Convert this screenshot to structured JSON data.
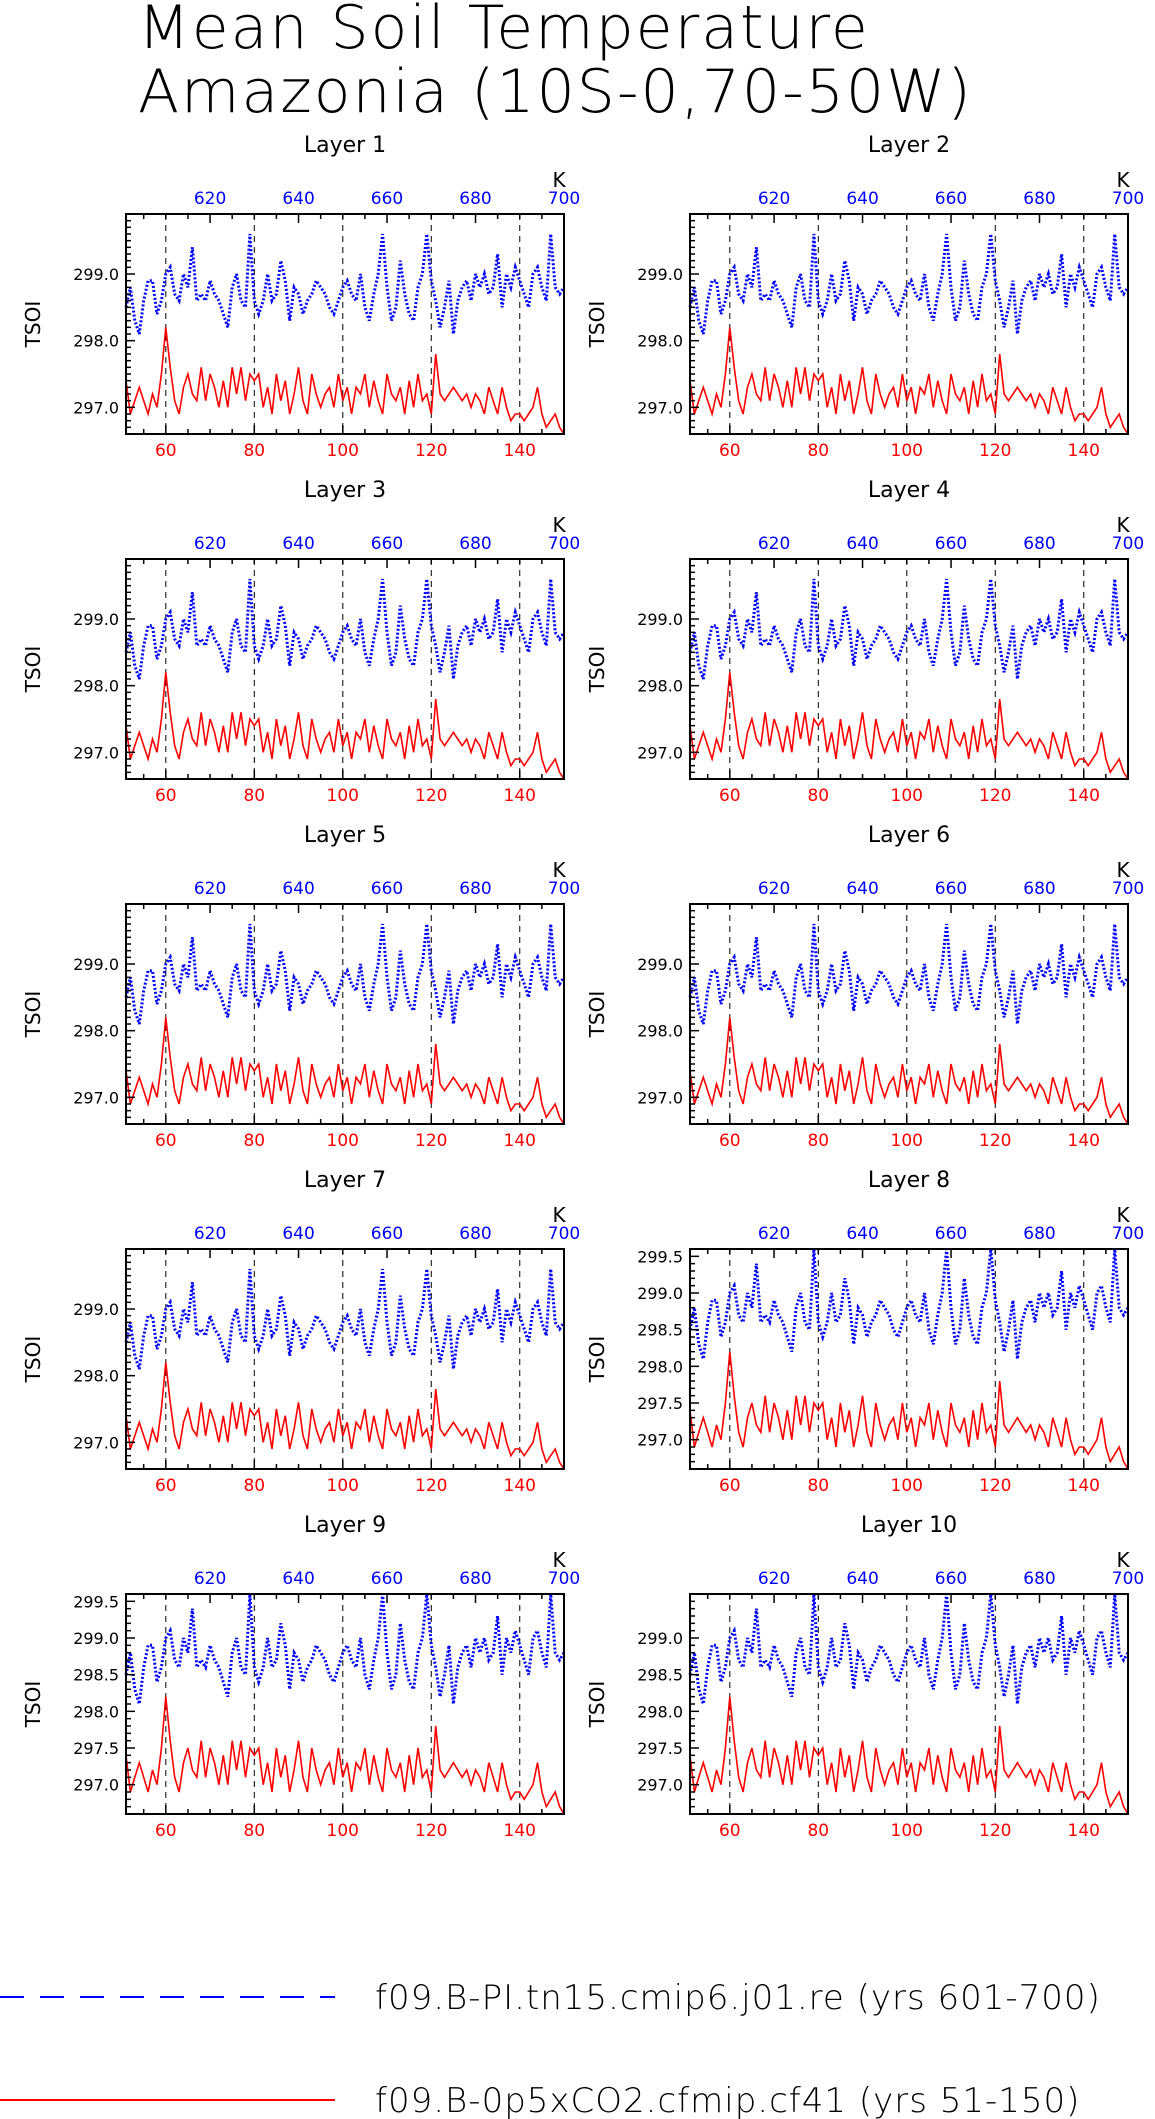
{
  "title": {
    "line1": "Mean Soil Temperature",
    "line2": "Amazonia (10S-0,70-50W)"
  },
  "colors": {
    "blue": "#0000ff",
    "red": "#ff0000"
  },
  "legend": [
    {
      "label": "f09.B-PI.tn15.cmip6.j01.re (yrs 601-700)",
      "style": "dashed",
      "color": "#0000ff"
    },
    {
      "label": "f09.B-0p5xCO2.cfmip.cf41 (yrs 51-150)",
      "style": "solid",
      "color": "#ff0000"
    }
  ],
  "chart_data": {
    "type": "line",
    "ylabel": "TSOI",
    "x_bottom": {
      "range": [
        51,
        150
      ],
      "ticks": [
        60,
        80,
        100,
        120,
        140
      ],
      "color": "#ff0000"
    },
    "x_top": {
      "range": [
        601,
        700
      ],
      "ticks": [
        620,
        640,
        660,
        680,
        700
      ],
      "label": "K",
      "color": "#0000ff"
    },
    "gridlines_x": [
      60,
      80,
      100,
      120,
      140
    ],
    "panels": [
      {
        "title": "Layer 1",
        "ylim": [
          296.6,
          299.9
        ],
        "yticks": [
          "297.0",
          "298.0",
          "299.0"
        ]
      },
      {
        "title": "Layer 2",
        "ylim": [
          296.6,
          299.9
        ],
        "yticks": [
          "297.0",
          "298.0",
          "299.0"
        ]
      },
      {
        "title": "Layer 3",
        "ylim": [
          296.6,
          299.9
        ],
        "yticks": [
          "297.0",
          "298.0",
          "299.0"
        ]
      },
      {
        "title": "Layer 4",
        "ylim": [
          296.6,
          299.9
        ],
        "yticks": [
          "297.0",
          "298.0",
          "299.0"
        ]
      },
      {
        "title": "Layer 5",
        "ylim": [
          296.6,
          299.9
        ],
        "yticks": [
          "297.0",
          "298.0",
          "299.0"
        ]
      },
      {
        "title": "Layer 6",
        "ylim": [
          296.6,
          299.9
        ],
        "yticks": [
          "297.0",
          "298.0",
          "299.0"
        ]
      },
      {
        "title": "Layer 7",
        "ylim": [
          296.6,
          299.9
        ],
        "yticks": [
          "297.0",
          "298.0",
          "299.0"
        ]
      },
      {
        "title": "Layer 8",
        "ylim": [
          296.6,
          299.6
        ],
        "yticks": [
          "297.0",
          "297.5",
          "298.0",
          "298.5",
          "299.0",
          "299.5"
        ]
      },
      {
        "title": "Layer 9",
        "ylim": [
          296.6,
          299.6
        ],
        "yticks": [
          "297.0",
          "297.5",
          "298.0",
          "298.5",
          "299.0",
          "299.5"
        ]
      },
      {
        "title": "Layer 10",
        "ylim": [
          296.6,
          299.6
        ],
        "yticks": [
          "297.0",
          "297.5",
          "298.0",
          "298.5",
          "299.0"
        ]
      }
    ],
    "series": [
      {
        "name": "f09.B-PI.tn15.cmip6.j01.re (yrs 601-700)",
        "axis": "top",
        "x_start": 601,
        "x_step": 1,
        "values": [
          298.5,
          298.8,
          298.3,
          298.1,
          298.6,
          298.9,
          298.9,
          298.4,
          298.6,
          299.0,
          299.1,
          298.7,
          298.6,
          299.0,
          298.8,
          299.4,
          298.6,
          298.7,
          298.6,
          298.9,
          298.7,
          298.6,
          298.4,
          298.2,
          298.8,
          299.0,
          298.6,
          298.5,
          299.6,
          298.6,
          298.4,
          298.6,
          299.0,
          298.6,
          298.7,
          299.2,
          298.9,
          298.3,
          298.8,
          298.7,
          298.4,
          298.6,
          298.7,
          298.9,
          298.8,
          298.7,
          298.5,
          298.4,
          298.6,
          298.8,
          298.9,
          298.7,
          298.6,
          299.0,
          298.5,
          298.3,
          298.7,
          299.0,
          299.6,
          298.8,
          298.3,
          298.5,
          299.2,
          298.7,
          298.4,
          298.3,
          298.8,
          299.0,
          299.6,
          298.9,
          298.6,
          298.2,
          298.5,
          298.9,
          298.1,
          298.6,
          298.8,
          298.9,
          298.6,
          299.0,
          298.8,
          299.0,
          298.7,
          298.8,
          299.3,
          298.5,
          299.0,
          298.8,
          299.1,
          298.9,
          298.7,
          298.5,
          299.0,
          299.1,
          298.8,
          298.6,
          299.6,
          298.8,
          298.7,
          298.8
        ]
      },
      {
        "name": "f09.B-0p5xCO2.cfmip.cf41 (yrs 51-150)",
        "axis": "bottom",
        "x_start": 51,
        "x_step": 1,
        "values": [
          297.4,
          296.9,
          297.1,
          297.3,
          297.1,
          296.9,
          297.2,
          297.0,
          297.5,
          298.2,
          297.6,
          297.1,
          296.9,
          297.3,
          297.5,
          297.2,
          297.1,
          297.6,
          297.1,
          297.5,
          297.3,
          297.0,
          297.4,
          297.0,
          297.6,
          297.2,
          297.6,
          297.1,
          297.5,
          297.4,
          297.5,
          297.0,
          297.3,
          296.9,
          297.5,
          297.1,
          297.4,
          296.9,
          297.2,
          297.6,
          297.1,
          296.9,
          297.5,
          297.2,
          297.0,
          297.2,
          297.3,
          297.0,
          297.5,
          297.1,
          297.3,
          296.9,
          297.3,
          297.2,
          297.5,
          297.0,
          297.4,
          297.1,
          296.9,
          297.5,
          297.2,
          297.1,
          297.3,
          296.9,
          297.4,
          297.0,
          297.5,
          297.1,
          297.2,
          296.9,
          297.8,
          297.2,
          297.1,
          297.2,
          297.3,
          297.2,
          297.1,
          297.2,
          297.0,
          297.2,
          297.1,
          296.9,
          297.3,
          297.1,
          296.9,
          297.3,
          297.0,
          296.8,
          296.9,
          296.9,
          296.8,
          296.9,
          297.0,
          297.3,
          296.9,
          296.7,
          296.8,
          296.9,
          296.7,
          296.6
        ]
      }
    ]
  }
}
